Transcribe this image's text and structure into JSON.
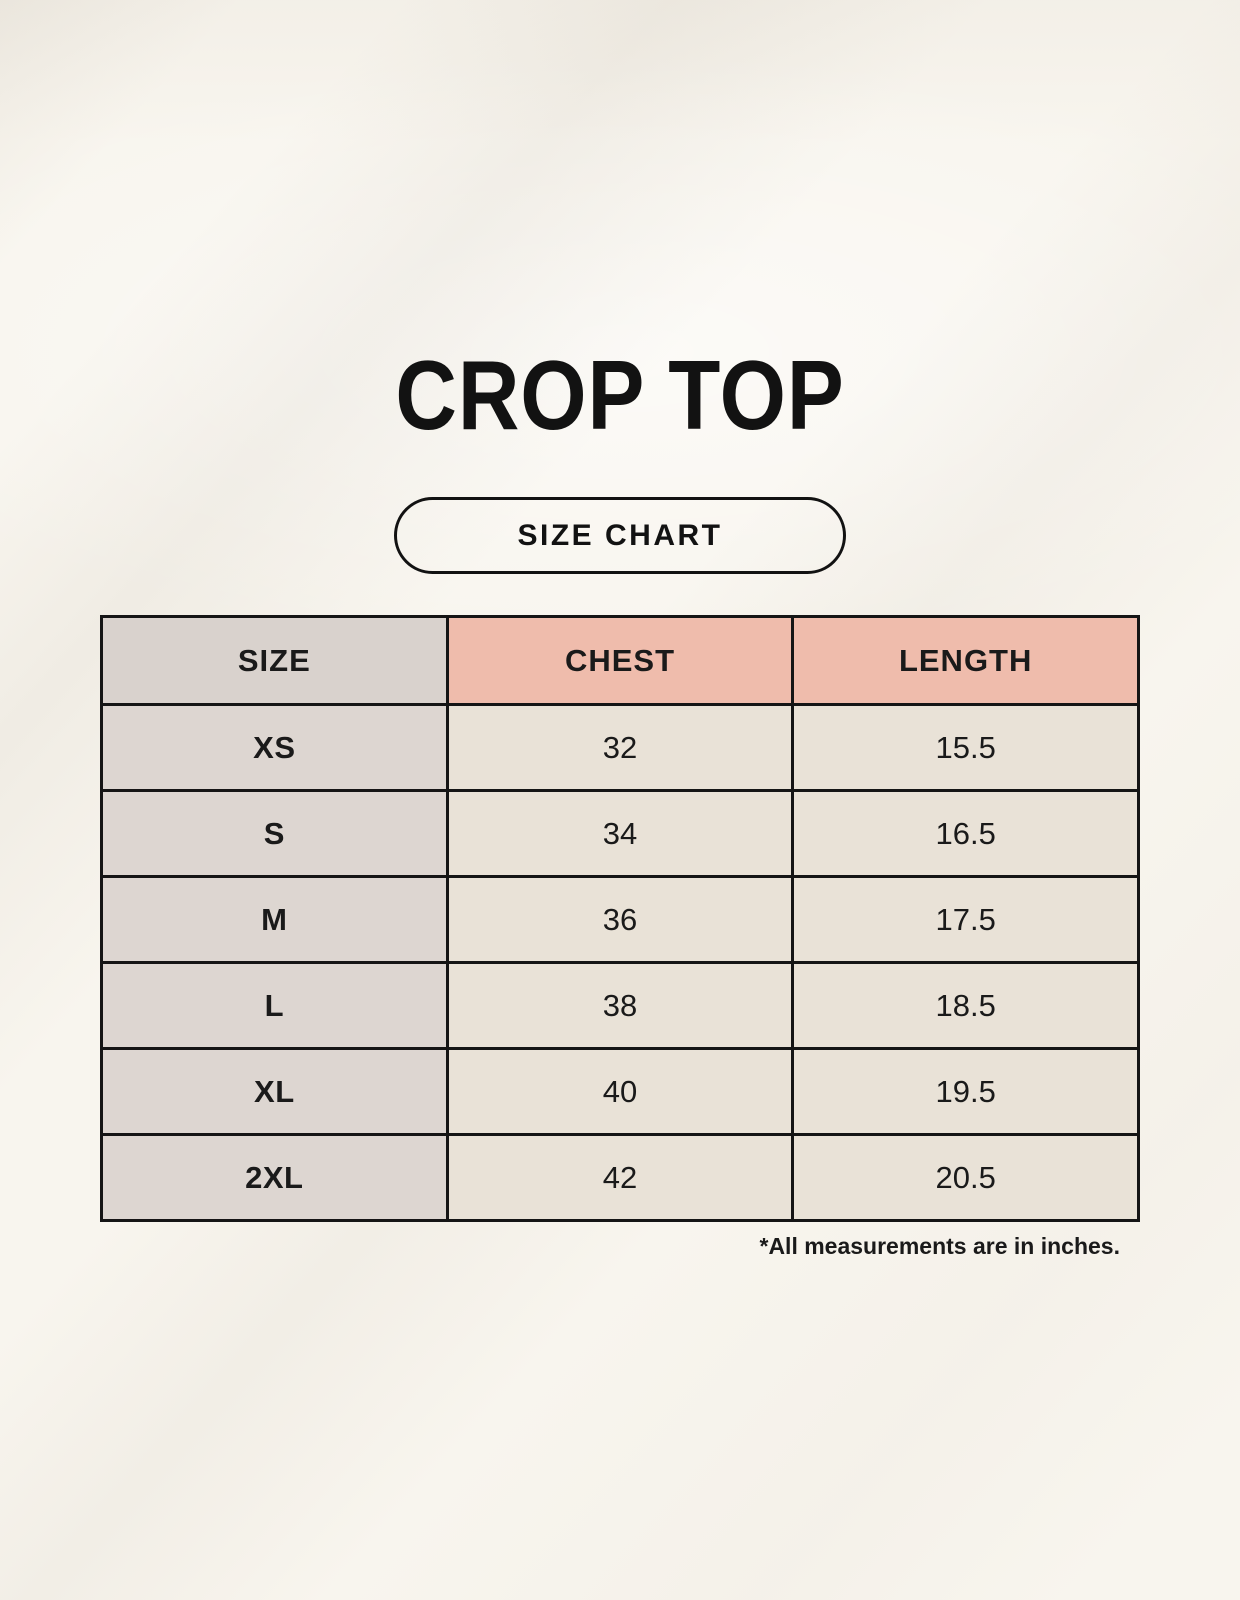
{
  "page": {
    "title": "CROP TOP",
    "badge_label": "SIZE CHART",
    "footnote": "*All measurements are in inches."
  },
  "colors": {
    "background": "#f8f5ee",
    "header_accent": "#efbcac",
    "size_column_header": "#d9d2cd",
    "size_column_cells": "#ddd6d1",
    "data_cells": "#e9e2d7",
    "border": "#151515",
    "text": "#121212"
  },
  "chart_data": {
    "type": "table",
    "title": "CROP TOP",
    "subtitle": "SIZE CHART",
    "columns": [
      "SIZE",
      "CHEST",
      "LENGTH"
    ],
    "rows": [
      {
        "size": "XS",
        "chest": "32",
        "length": "15.5"
      },
      {
        "size": "S",
        "chest": "34",
        "length": "16.5"
      },
      {
        "size": "M",
        "chest": "36",
        "length": "17.5"
      },
      {
        "size": "L",
        "chest": "38",
        "length": "18.5"
      },
      {
        "size": "XL",
        "chest": "40",
        "length": "19.5"
      },
      {
        "size": "2XL",
        "chest": "42",
        "length": "20.5"
      }
    ],
    "units_note": "*All measurements are in inches.",
    "layout_hints": {
      "columns_equal_width": true,
      "header_row_accent_columns": [
        "CHEST",
        "LENGTH"
      ],
      "footnote_alignment": "right"
    }
  }
}
